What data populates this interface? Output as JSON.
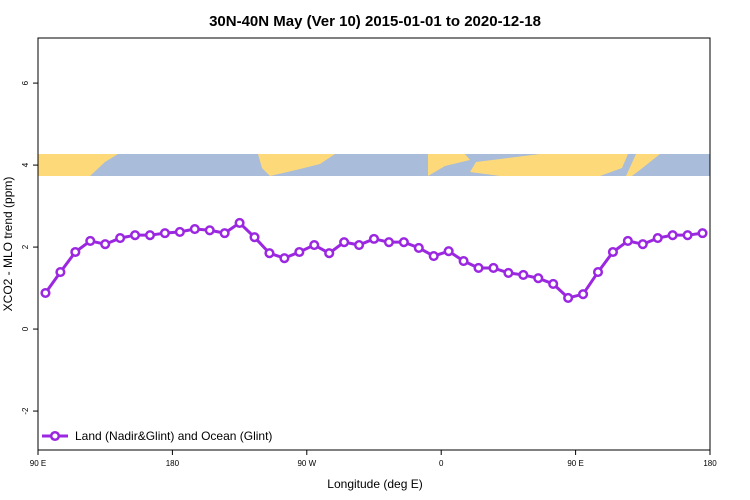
{
  "chart_data": {
    "type": "line",
    "title": "30N-40N May (Ver 10)   2015-01-01 to 2020-12-18",
    "x_label": "Longitude (deg E)",
    "y_label": "XCO2 - MLO trend (ppm)",
    "xlim": [
      90,
      540
    ],
    "xticks": [
      {
        "value": 90,
        "label": "90 E"
      },
      {
        "value": 180,
        "label": "180"
      },
      {
        "value": 270,
        "label": "90 W"
      },
      {
        "value": 360,
        "label": "0"
      },
      {
        "value": 450,
        "label": "90 E"
      },
      {
        "value": 540,
        "label": "180"
      }
    ],
    "ylim": [
      -2.95,
      7.1
    ],
    "yticks": [
      -2,
      0,
      2,
      4,
      6
    ],
    "legend": "bottom-left",
    "x": [
      95,
      105,
      115,
      125,
      135,
      145,
      155,
      165,
      175,
      185,
      195,
      205,
      215,
      225,
      235,
      245,
      255,
      265,
      275,
      285,
      295,
      305,
      315,
      325,
      335,
      345,
      355,
      365,
      375,
      385,
      395,
      405,
      415,
      425,
      435,
      445,
      455,
      465,
      475,
      485,
      495,
      505,
      515,
      525,
      535
    ],
    "series": [
      {
        "name": "Land (Nadir&Glint) and Ocean (Glint)",
        "color": "#9b27e0",
        "values": [
          0.88,
          1.39,
          1.88,
          2.15,
          2.07,
          2.22,
          2.29,
          2.29,
          2.34,
          2.37,
          2.44,
          2.41,
          2.34,
          2.59,
          2.24,
          1.85,
          1.73,
          1.88,
          2.05,
          1.85,
          2.12,
          2.05,
          2.2,
          2.12,
          2.12,
          1.98,
          1.78,
          1.9,
          1.66,
          1.49,
          1.49,
          1.37,
          1.32,
          1.24,
          1.1,
          0.76,
          0.85,
          1.39,
          1.88,
          2.15,
          2.07,
          2.22,
          2.29,
          2.29,
          2.34
        ]
      }
    ]
  }
}
